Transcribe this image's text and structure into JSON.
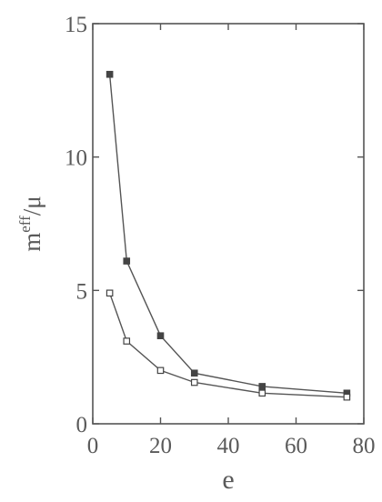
{
  "chart_data": {
    "type": "line",
    "xlabel": "e",
    "ylabel": {
      "base": "m",
      "sup": "eff",
      "rest": "/μ"
    },
    "xlim": [
      0,
      80
    ],
    "ylim": [
      0,
      15
    ],
    "xticks": [
      0,
      20,
      40,
      60,
      80
    ],
    "yticks": [
      0,
      5,
      10,
      15
    ],
    "grid": false,
    "series": [
      {
        "marker": "filled-square",
        "x": [
          5,
          10,
          20,
          30,
          50,
          75
        ],
        "y": [
          13.1,
          6.1,
          3.3,
          1.9,
          1.4,
          1.15
        ]
      },
      {
        "marker": "open-square",
        "x": [
          5,
          10,
          20,
          30,
          50,
          75
        ],
        "y": [
          4.9,
          3.1,
          2.0,
          1.55,
          1.15,
          1.0
        ]
      }
    ],
    "colors": {
      "line": "#555555",
      "axis": "#555555",
      "text": "#5a5a5a"
    }
  }
}
